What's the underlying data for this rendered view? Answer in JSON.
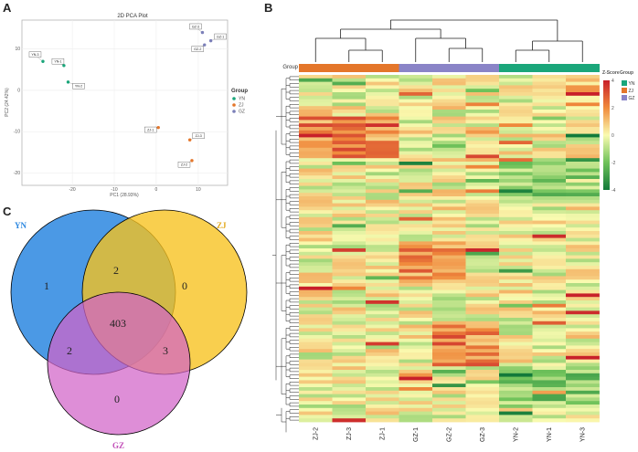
{
  "panels": {
    "a": "A",
    "b": "B",
    "c": "C"
  },
  "pca": {
    "title": "2D PCA Plot",
    "xlabel": "PC1 (28.93%)",
    "ylabel": "PC2 (24.42%)",
    "x_ticks": [
      "-20",
      "-10",
      "0",
      "10"
    ],
    "y_ticks": [
      "10",
      "0",
      "-10",
      "-20"
    ],
    "legend_title": "Group",
    "legend": [
      {
        "name": "YN",
        "color": "#1aa67a"
      },
      {
        "name": "ZJ",
        "color": "#e4762a"
      },
      {
        "name": "GZ",
        "color": "#7b7fb8"
      }
    ]
  },
  "venn": {
    "labels": {
      "yn": "YN",
      "zj": "ZJ",
      "gz": "GZ"
    },
    "counts": {
      "yn_only": "1",
      "zj_only": "0",
      "gz_only": "0",
      "yn_zj": "2",
      "yn_gz": "2",
      "zj_gz": "3",
      "all": "403"
    }
  },
  "heatmap": {
    "group_label": "Group",
    "zscore_title": "Z-Score",
    "group_title": "Group",
    "zscore_ticks": [
      "4",
      "2",
      "0",
      "-2",
      "-4"
    ],
    "columns": [
      "ZJ-2",
      "ZJ-3",
      "ZJ-1",
      "GZ-1",
      "GZ-2",
      "GZ-3",
      "YN-2",
      "YN-1",
      "YN-3"
    ],
    "column_groups": [
      "ZJ",
      "ZJ",
      "ZJ",
      "GZ",
      "GZ",
      "GZ",
      "YN",
      "YN",
      "YN"
    ],
    "group_colors": {
      "ZJ": "#e4762a",
      "GZ": "#8a84c7",
      "YN": "#1aa67a"
    },
    "legend_groups": [
      "YN",
      "ZJ",
      "GZ"
    ]
  },
  "chart_data": {
    "type": "scatter",
    "title": "2D PCA Plot",
    "xlabel": "PC1 (28.93%)",
    "ylabel": "PC2 (24.42%)",
    "xlim": [
      -32,
      17
    ],
    "ylim": [
      -23,
      17
    ],
    "series": [
      {
        "name": "YN",
        "points": [
          {
            "label": "YN-3",
            "x": -27,
            "y": 7
          },
          {
            "label": "YN-1",
            "x": -22,
            "y": 6
          },
          {
            "label": "YN-2",
            "x": -21,
            "y": 2
          }
        ]
      },
      {
        "name": "ZJ",
        "points": [
          {
            "label": "ZJ-1",
            "x": 0.5,
            "y": -9
          },
          {
            "label": "ZJ-3",
            "x": 8,
            "y": -12
          },
          {
            "label": "ZJ-2",
            "x": 8.5,
            "y": -17
          }
        ]
      },
      {
        "name": "GZ",
        "points": [
          {
            "label": "GZ-3",
            "x": 11,
            "y": 14
          },
          {
            "label": "GZ-1",
            "x": 13,
            "y": 12
          },
          {
            "label": "GZ-2",
            "x": 11.5,
            "y": 11
          }
        ]
      }
    ]
  }
}
